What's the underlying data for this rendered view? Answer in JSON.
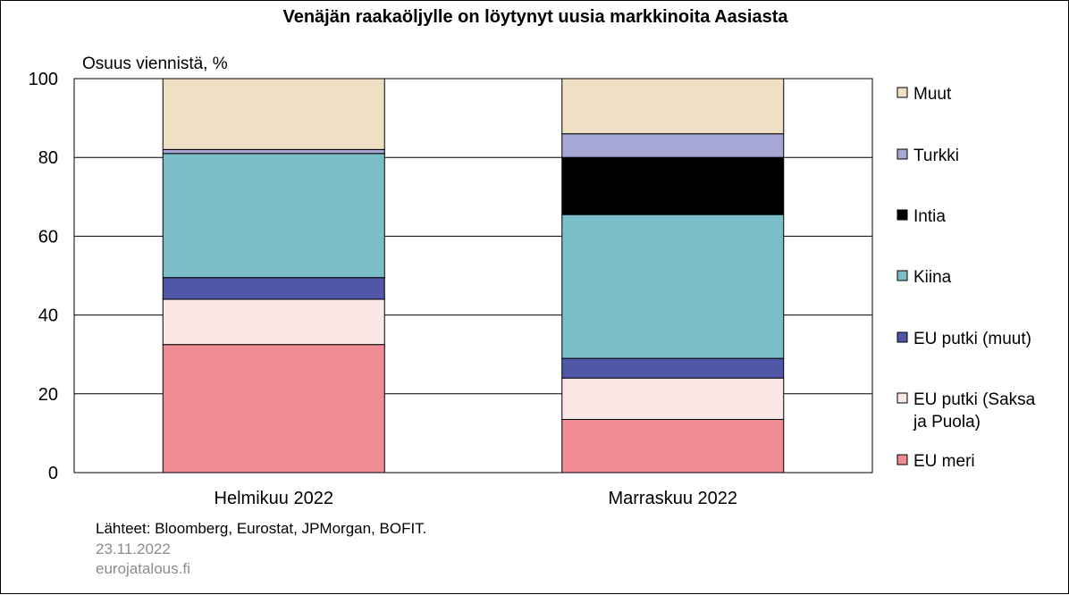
{
  "chart_data": {
    "type": "bar",
    "stacked": true,
    "title": "Venäjän raakaöljylle on löytynyt  uusia markkinoita Aasiasta",
    "ylabel": "Osuus viennistä, %",
    "xlabel": "",
    "ylim": [
      0,
      100
    ],
    "yticks": [
      "0",
      "20",
      "40",
      "60",
      "80",
      "100"
    ],
    "grid": true,
    "legend_position": "right",
    "categories": [
      "Helmikuu 2022",
      "Marraskuu 2022"
    ],
    "series": [
      {
        "name": "EU meri",
        "color": "#f08c94",
        "values": [
          32.5,
          13.5
        ]
      },
      {
        "name": "EU putki (Saksa ja Puola)",
        "color": "#fbe6e6",
        "values": [
          11.5,
          10.5
        ]
      },
      {
        "name": "EU putki (muut)",
        "color": "#4f57a6",
        "values": [
          5.5,
          5.0
        ]
      },
      {
        "name": "Kiina",
        "color": "#7cbec8",
        "values": [
          31.5,
          36.5
        ]
      },
      {
        "name": "Intia",
        "color": "#000000",
        "values": [
          0.0,
          14.5
        ]
      },
      {
        "name": "Turkki",
        "color": "#a7a7d6",
        "values": [
          1.0,
          6.0
        ]
      },
      {
        "name": "Muut",
        "color": "#efdfc3",
        "values": [
          18.0,
          14.0
        ]
      }
    ]
  },
  "legend": [
    {
      "lines": [
        "Muut"
      ],
      "color": "#efdfc3"
    },
    {
      "lines": [
        "Turkki"
      ],
      "color": "#a7a7d6"
    },
    {
      "lines": [
        "Intia"
      ],
      "color": "#000000"
    },
    {
      "lines": [
        "Kiina"
      ],
      "color": "#7cbec8"
    },
    {
      "lines": [
        "EU putki (muut)"
      ],
      "color": "#4f57a6"
    },
    {
      "lines": [
        "EU putki (Saksa",
        "ja Puola)"
      ],
      "color": "#fbe6e6"
    },
    {
      "lines": [
        "EU meri"
      ],
      "color": "#f08c94"
    }
  ],
  "footer": {
    "source": "Lähteet: Bloomberg, Eurostat, JPMorgan, BOFIT.",
    "date": "23.11.2022",
    "site": "eurojatalous.fi"
  }
}
